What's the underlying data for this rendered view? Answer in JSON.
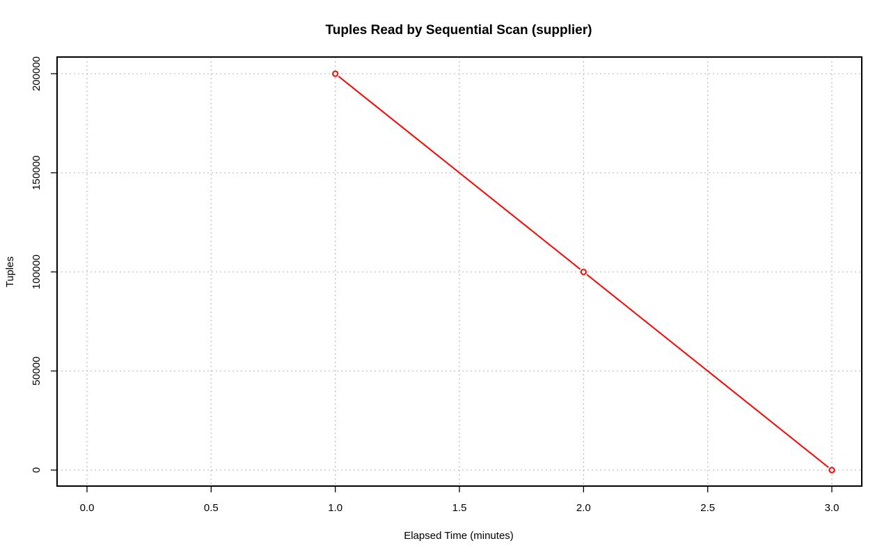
{
  "chart_data": {
    "type": "line",
    "title": "Tuples Read by Sequential Scan (supplier)",
    "xlabel": "Elapsed Time (minutes)",
    "ylabel": "Tuples",
    "xlim": [
      0,
      3
    ],
    "ylim": [
      0,
      200000
    ],
    "x_ticks": [
      0,
      0.5,
      1,
      1.5,
      2,
      2.5,
      3
    ],
    "x_tick_labels": [
      "0.0",
      "0.5",
      "1.0",
      "1.5",
      "2.0",
      "2.5",
      "3.0"
    ],
    "y_ticks": [
      0,
      50000,
      100000,
      150000,
      200000
    ],
    "y_tick_labels": [
      "0",
      "50000",
      "100000",
      "150000",
      "200000"
    ],
    "grid": true,
    "series": [
      {
        "color": "#ff0000",
        "marker": "open-circle",
        "x": [
          1,
          2,
          3
        ],
        "y": [
          200000,
          100000,
          0
        ]
      }
    ]
  }
}
